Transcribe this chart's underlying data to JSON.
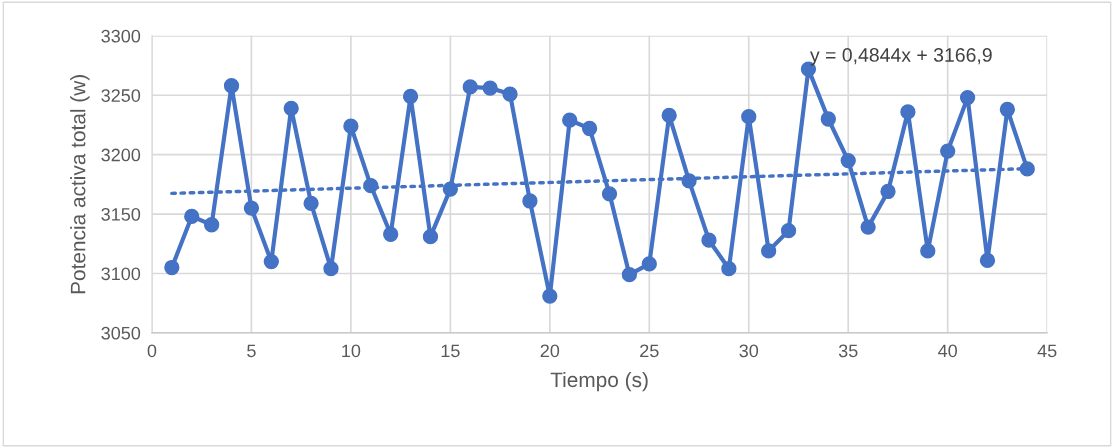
{
  "chart_data": {
    "type": "line",
    "xlabel": "Tiempo (s)",
    "ylabel": "Potencia activa total (w)",
    "xlim": [
      0,
      45
    ],
    "xticks": [
      0,
      5,
      10,
      15,
      20,
      25,
      30,
      35,
      40,
      45
    ],
    "ylim": [
      3050,
      3300
    ],
    "yticks": [
      3050,
      3100,
      3150,
      3200,
      3250,
      3300
    ],
    "grid": true,
    "marker": "circle",
    "line_style": "solid",
    "annotations": [
      "y = 0,4844x + 3166,9"
    ],
    "series": [
      {
        "color": "#4472c4",
        "x": [
          1,
          2,
          3,
          4,
          5,
          6,
          7,
          8,
          9,
          10,
          11,
          12,
          13,
          14,
          15,
          16,
          17,
          18,
          19,
          20,
          21,
          22,
          23,
          24,
          25,
          26,
          27,
          28,
          29,
          30,
          31,
          32,
          33,
          34,
          35,
          36,
          37,
          38,
          39,
          40,
          41,
          42,
          43,
          44
        ],
        "values": [
          3105,
          3148,
          3141,
          3258,
          3155,
          3110,
          3239,
          3159,
          3104,
          3224,
          3174,
          3133,
          3249,
          3131,
          3171,
          3257,
          3256,
          3251,
          3161,
          3081,
          3229,
          3222,
          3167,
          3099,
          3108,
          3233,
          3178,
          3128,
          3104,
          3232,
          3119,
          3136,
          3272,
          3230,
          3195,
          3139,
          3169,
          3236,
          3119,
          3203,
          3248,
          3111,
          3238,
          3188
        ]
      },
      {
        "type": "line",
        "color": "#4472c4",
        "line_style": "dotted",
        "marker": "none",
        "x": [
          1,
          44
        ],
        "values": [
          3167.4,
          3188.2
        ]
      }
    ]
  }
}
